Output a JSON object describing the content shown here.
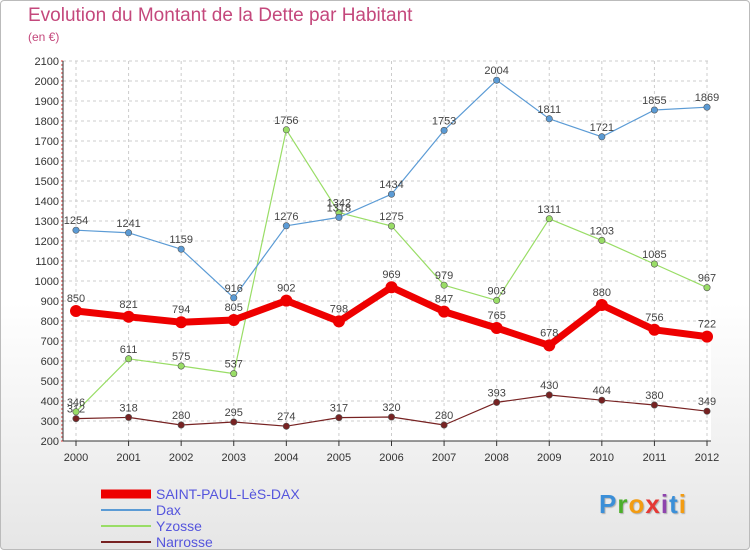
{
  "chart_data": {
    "type": "line",
    "title": "Evolution du Montant de la Dette par Habitant",
    "subtitle": "(en €)",
    "xlabel": "",
    "ylabel": "",
    "ylim": [
      200,
      2100
    ],
    "yticks": [
      200,
      300,
      400,
      500,
      600,
      700,
      800,
      900,
      1000,
      1100,
      1200,
      1300,
      1400,
      1500,
      1600,
      1700,
      1800,
      1900,
      2000,
      2100
    ],
    "categories": [
      "2000",
      "2001",
      "2002",
      "2003",
      "2004",
      "2005",
      "2006",
      "2007",
      "2008",
      "2009",
      "2010",
      "2011",
      "2012"
    ],
    "grid": true,
    "legend_position": "bottom-left",
    "series": [
      {
        "name": "SAINT-PAUL-LèS-DAX",
        "color": "#ee0000",
        "values": [
          850,
          821,
          794,
          805,
          902,
          798,
          969,
          847,
          765,
          678,
          880,
          756,
          722
        ]
      },
      {
        "name": "Dax",
        "color": "#5b9bd5",
        "values": [
          1254,
          1241,
          1159,
          916,
          1276,
          1318,
          1434,
          1753,
          2004,
          1811,
          1721,
          1855,
          1869
        ]
      },
      {
        "name": "Yzosse",
        "color": "#99dd66",
        "values": [
          346,
          611,
          575,
          537,
          1756,
          1342,
          1275,
          979,
          903,
          1311,
          1203,
          1085,
          967
        ]
      },
      {
        "name": "Narrosse",
        "color": "#772222",
        "values": [
          312,
          318,
          280,
          295,
          274,
          317,
          320,
          280,
          393,
          430,
          404,
          380,
          349
        ]
      }
    ]
  },
  "brand": {
    "letters": [
      "P",
      "r",
      "o",
      "x",
      "i",
      "t",
      "i"
    ],
    "colors": [
      "#3b8fd8",
      "#4caf2a",
      "#f39c12",
      "#e53935",
      "#8e44ad",
      "#3b8fd8",
      "#f39c12"
    ]
  }
}
